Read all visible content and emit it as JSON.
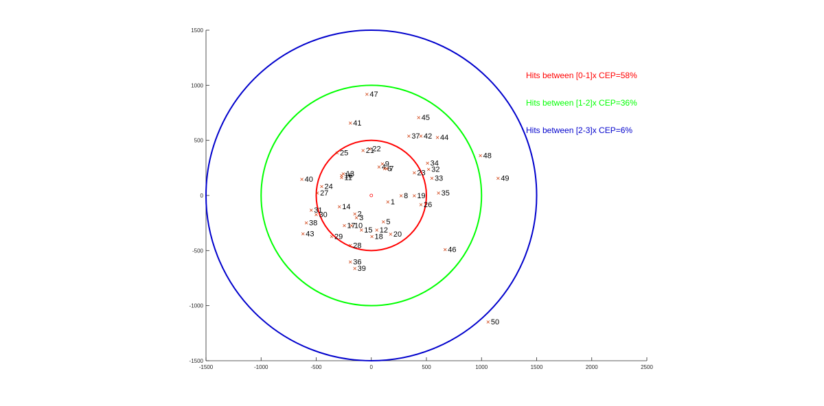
{
  "chart_data": {
    "type": "scatter",
    "title": "",
    "xlabel": "",
    "ylabel": "",
    "xlim": [
      -1500,
      2500
    ],
    "ylim": [
      -1500,
      1500
    ],
    "xticks": [
      -1500,
      -1000,
      -500,
      0,
      500,
      1000,
      1500,
      2000,
      2500
    ],
    "yticks": [
      -1500,
      -1000,
      -500,
      0,
      500,
      1000,
      1500
    ],
    "x_tick_labels": [
      "-1500",
      "-1000",
      "-500",
      "0",
      "500",
      "1000",
      "1500",
      "2000",
      "2500"
    ],
    "y_tick_labels": [
      "-1500",
      "-1000",
      "-500",
      "0",
      "500",
      "1000",
      "1500"
    ],
    "grid": false,
    "legend_position": "top-right",
    "center": {
      "x": 0,
      "y": 0,
      "color": "#ff0000"
    },
    "circles": [
      {
        "radius": 500,
        "color": "#ff0000"
      },
      {
        "radius": 1000,
        "color": "#00ff00"
      },
      {
        "radius": 1500,
        "color": "#0000cc"
      }
    ],
    "legend": [
      {
        "text": "Hits between [0-1]x CEP=58%",
        "color": "#ff0000"
      },
      {
        "text": "Hits between [1-2]x CEP=36%",
        "color": "#00ff00"
      },
      {
        "text": "Hits between [2-3]x CEP=6%",
        "color": "#0000cc"
      }
    ],
    "marker_color": "#cc3300",
    "marker_symbol": "×",
    "points": [
      {
        "label": "1",
        "x": 150,
        "y": -55
      },
      {
        "label": "2",
        "x": -150,
        "y": -165
      },
      {
        "label": "3",
        "x": -135,
        "y": -200
      },
      {
        "label": "4",
        "x": 70,
        "y": 260
      },
      {
        "label": "5",
        "x": 110,
        "y": -235
      },
      {
        "label": "6",
        "x": 120,
        "y": 245
      },
      {
        "label": "7",
        "x": 140,
        "y": 245
      },
      {
        "label": "8",
        "x": 270,
        "y": 0
      },
      {
        "label": "9",
        "x": 100,
        "y": 290
      },
      {
        "label": "10",
        "x": -180,
        "y": -270
      },
      {
        "label": "11",
        "x": -270,
        "y": 165
      },
      {
        "label": "12",
        "x": 50,
        "y": -310
      },
      {
        "label": "13",
        "x": -255,
        "y": 200
      },
      {
        "label": "14",
        "x": -290,
        "y": -100
      },
      {
        "label": "15",
        "x": -90,
        "y": -310
      },
      {
        "label": "16",
        "x": -270,
        "y": 185
      },
      {
        "label": "17",
        "x": -245,
        "y": -270
      },
      {
        "label": "18",
        "x": 5,
        "y": -370
      },
      {
        "label": "19",
        "x": 390,
        "y": 0
      },
      {
        "label": "20",
        "x": 175,
        "y": -350
      },
      {
        "label": "21",
        "x": -75,
        "y": 410
      },
      {
        "label": "22",
        "x": -15,
        "y": 425
      },
      {
        "label": "23",
        "x": 390,
        "y": 210
      },
      {
        "label": "24",
        "x": -450,
        "y": 85
      },
      {
        "label": "25",
        "x": -310,
        "y": 390
      },
      {
        "label": "26",
        "x": 450,
        "y": -80
      },
      {
        "label": "27",
        "x": -490,
        "y": 25
      },
      {
        "label": "28",
        "x": -190,
        "y": -450
      },
      {
        "label": "29",
        "x": -360,
        "y": -370
      },
      {
        "label": "30",
        "x": -500,
        "y": -170
      },
      {
        "label": "31",
        "x": -545,
        "y": -130
      },
      {
        "label": "32",
        "x": 520,
        "y": 240
      },
      {
        "label": "33",
        "x": 550,
        "y": 160
      },
      {
        "label": "34",
        "x": 510,
        "y": 295
      },
      {
        "label": "35",
        "x": 610,
        "y": 25
      },
      {
        "label": "36",
        "x": -190,
        "y": -600
      },
      {
        "label": "37",
        "x": 340,
        "y": 540
      },
      {
        "label": "38",
        "x": -590,
        "y": -245
      },
      {
        "label": "39",
        "x": -150,
        "y": -660
      },
      {
        "label": "40",
        "x": -630,
        "y": 150
      },
      {
        "label": "41",
        "x": -190,
        "y": 660
      },
      {
        "label": "42",
        "x": 450,
        "y": 540
      },
      {
        "label": "43",
        "x": -620,
        "y": -345
      },
      {
        "label": "44",
        "x": 600,
        "y": 530
      },
      {
        "label": "45",
        "x": 430,
        "y": 710
      },
      {
        "label": "46",
        "x": 670,
        "y": -490
      },
      {
        "label": "47",
        "x": -40,
        "y": 920
      },
      {
        "label": "48",
        "x": 990,
        "y": 365
      },
      {
        "label": "49",
        "x": 1150,
        "y": 160
      },
      {
        "label": "50",
        "x": 1060,
        "y": -1145
      }
    ]
  }
}
